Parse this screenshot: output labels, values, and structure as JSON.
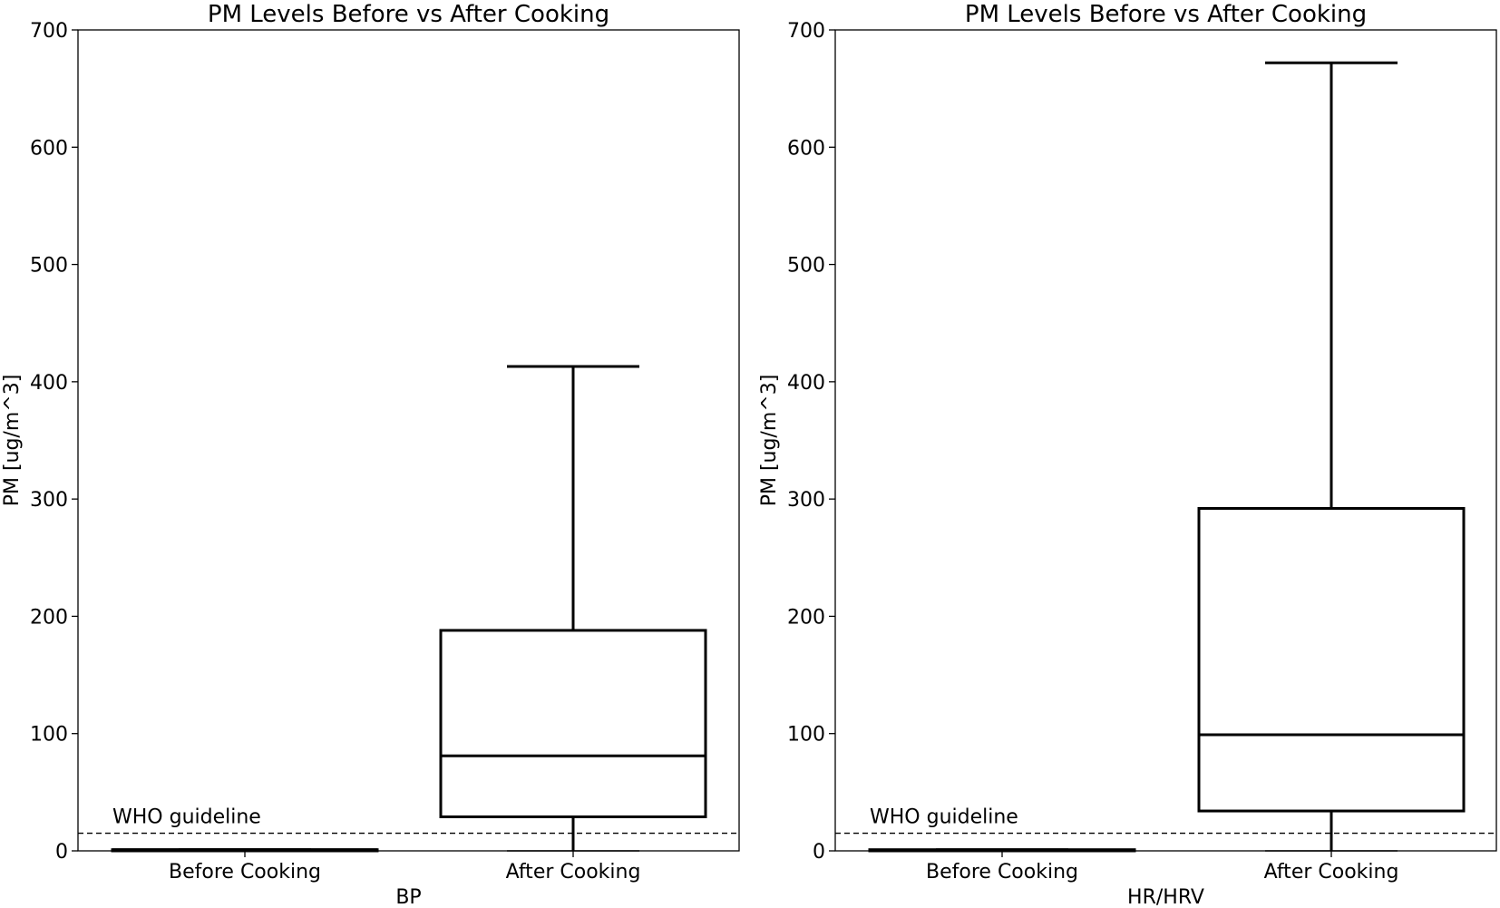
{
  "chart_data": [
    {
      "type": "box",
      "title": "PM Levels Before vs After Cooking",
      "xlabel": "BP",
      "ylabel": "PM [ug/m^3]",
      "ylim": [
        0,
        700
      ],
      "yticks": [
        0,
        100,
        200,
        300,
        400,
        500,
        600,
        700
      ],
      "categories": [
        "Before Cooking",
        "After Cooking"
      ],
      "boxes": [
        {
          "label": "Before Cooking",
          "whisker_low": 0,
          "q1": 0,
          "median": 1,
          "q3": 1,
          "whisker_high": 1
        },
        {
          "label": "After Cooking",
          "whisker_low": 0,
          "q1": 29,
          "median": 81,
          "q3": 188,
          "whisker_high": 413
        }
      ],
      "reference_line": {
        "label": "WHO guideline",
        "value": 15,
        "style": "dashed"
      },
      "grid": false
    },
    {
      "type": "box",
      "title": "PM Levels Before vs After Cooking",
      "xlabel": "HR/HRV",
      "ylabel": "PM [ug/m^3]",
      "ylim": [
        0,
        700
      ],
      "yticks": [
        0,
        100,
        200,
        300,
        400,
        500,
        600,
        700
      ],
      "categories": [
        "Before Cooking",
        "After Cooking"
      ],
      "boxes": [
        {
          "label": "Before Cooking",
          "whisker_low": 0,
          "q1": 0,
          "median": 0,
          "q3": 1,
          "whisker_high": 1
        },
        {
          "label": "After Cooking",
          "whisker_low": 0,
          "q1": 34,
          "median": 99,
          "q3": 292,
          "whisker_high": 672
        }
      ],
      "reference_line": {
        "label": "WHO guideline",
        "value": 15,
        "style": "dashed"
      },
      "grid": false
    }
  ],
  "colors": {
    "line": "#000000",
    "background": "#ffffff"
  }
}
